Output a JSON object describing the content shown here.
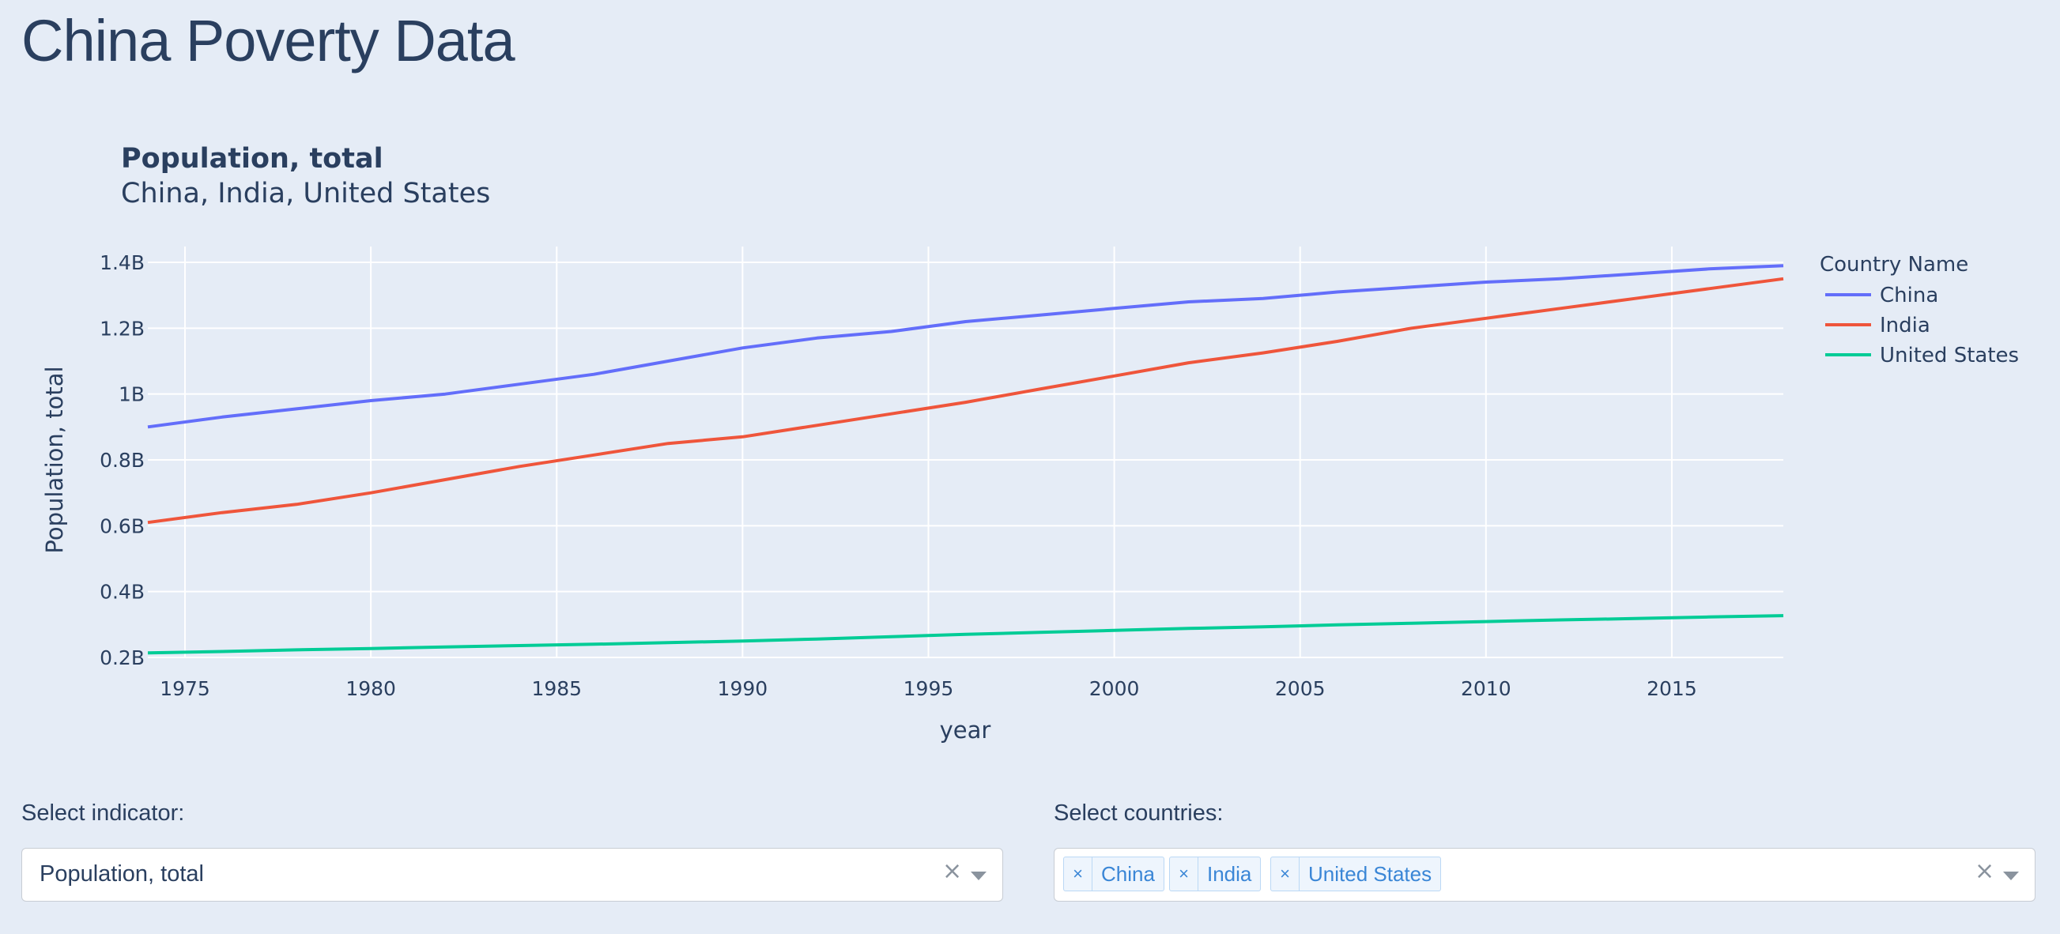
{
  "page": {
    "title": "China Poverty Data"
  },
  "chart_data": {
    "type": "line",
    "title": "Population, total",
    "subtitle": "China, India, United States",
    "xlabel": "year",
    "ylabel": "Population, total",
    "xlim": [
      1974,
      2018
    ],
    "ylim": [
      0.2,
      1.45
    ],
    "x_ticks": [
      1975,
      1980,
      1985,
      1990,
      1995,
      2000,
      2005,
      2010,
      2015
    ],
    "y_ticks": [
      0.2,
      0.4,
      0.6,
      0.8,
      1.0,
      1.2,
      1.4
    ],
    "y_tick_labels": [
      "0.2B",
      "0.4B",
      "0.6B",
      "0.8B",
      "1B",
      "1.2B",
      "1.4B"
    ],
    "grid": true,
    "legend_title": "Country Name",
    "legend_position": "top-right",
    "x": [
      1974,
      1976,
      1978,
      1980,
      1982,
      1984,
      1986,
      1988,
      1990,
      1992,
      1994,
      1996,
      1998,
      2000,
      2002,
      2004,
      2006,
      2008,
      2010,
      2012,
      2014,
      2016,
      2018
    ],
    "series": [
      {
        "name": "China",
        "color": "#636efa",
        "values": [
          0.9,
          0.93,
          0.955,
          0.98,
          1.0,
          1.03,
          1.06,
          1.1,
          1.14,
          1.17,
          1.19,
          1.22,
          1.24,
          1.26,
          1.28,
          1.29,
          1.31,
          1.325,
          1.34,
          1.35,
          1.365,
          1.38,
          1.39
        ]
      },
      {
        "name": "India",
        "color": "#ef553b",
        "values": [
          0.61,
          0.64,
          0.665,
          0.7,
          0.74,
          0.78,
          0.815,
          0.85,
          0.87,
          0.905,
          0.94,
          0.975,
          1.015,
          1.055,
          1.095,
          1.125,
          1.16,
          1.2,
          1.23,
          1.26,
          1.29,
          1.32,
          1.35
        ]
      },
      {
        "name": "United States",
        "color": "#00cc96",
        "values": [
          0.214,
          0.218,
          0.223,
          0.227,
          0.232,
          0.236,
          0.24,
          0.245,
          0.25,
          0.256,
          0.263,
          0.27,
          0.276,
          0.282,
          0.288,
          0.293,
          0.299,
          0.304,
          0.309,
          0.314,
          0.318,
          0.323,
          0.327
        ]
      }
    ]
  },
  "controls": {
    "indicator": {
      "label": "Select indicator:",
      "value": "Population, total",
      "clear_glyph": "×"
    },
    "countries": {
      "label": "Select countries:",
      "tags": [
        "China",
        "India",
        "United States"
      ],
      "remove_glyph": "×",
      "clear_glyph": "×"
    }
  }
}
